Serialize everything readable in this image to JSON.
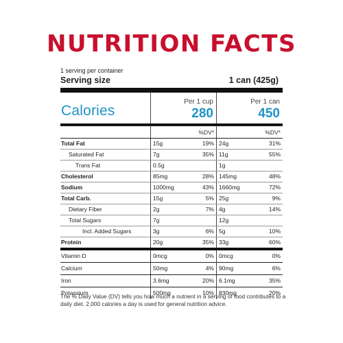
{
  "title": "NUTRITION FACTS",
  "colors": {
    "title": "#c8102e",
    "calories": "#1f93c5"
  },
  "serving": {
    "count": "1 serving per container",
    "size_label": "Serving size",
    "size_value": "1 can (425g)"
  },
  "columns": {
    "col1_header": "Per 1 cup",
    "col2_header": "Per 1 can",
    "dv_header": "%DV*"
  },
  "calories": {
    "label": "Calories",
    "col1": "280",
    "col2": "450"
  },
  "nutrients": [
    {
      "name": "Total Fat",
      "bold": true,
      "indent": 0,
      "col1_amt": "15g",
      "col1_dv": "19%",
      "col2_amt": "24g",
      "col2_dv": "31%"
    },
    {
      "name": "Saturated Fat",
      "bold": false,
      "indent": 1,
      "col1_amt": "7g",
      "col1_dv": "35%",
      "col2_amt": "11g",
      "col2_dv": "55%"
    },
    {
      "name": "Trans Fat",
      "bold": false,
      "indent": 2,
      "col1_amt": "0.5g",
      "col1_dv": "",
      "col2_amt": "1g",
      "col2_dv": ""
    },
    {
      "name": "Cholesterol",
      "bold": true,
      "indent": 0,
      "col1_amt": "85mg",
      "col1_dv": "28%",
      "col2_amt": "145mg",
      "col2_dv": "48%"
    },
    {
      "name": "Sodium",
      "bold": true,
      "indent": 0,
      "col1_amt": "1000mg",
      "col1_dv": "43%",
      "col2_amt": "1660mg",
      "col2_dv": "72%"
    },
    {
      "name": "Total Carb.",
      "bold": true,
      "indent": 0,
      "col1_amt": "15g",
      "col1_dv": "5%",
      "col2_amt": "25g",
      "col2_dv": "9%"
    },
    {
      "name": "Dietary Fiber",
      "bold": false,
      "indent": 1,
      "col1_amt": "2g",
      "col1_dv": "7%",
      "col2_amt": "4g",
      "col2_dv": "14%"
    },
    {
      "name": "Total Sugars",
      "bold": false,
      "indent": 1,
      "col1_amt": "7g",
      "col1_dv": "",
      "col2_amt": "12g",
      "col2_dv": ""
    },
    {
      "name": "Incl. Added Sugars",
      "bold": false,
      "indent": 3,
      "col1_amt": "3g",
      "col1_dv": "6%",
      "col2_amt": "5g",
      "col2_dv": "10%"
    },
    {
      "name": "Protein",
      "bold": true,
      "indent": 0,
      "col1_amt": "20g",
      "col1_dv": "35%",
      "col2_amt": "33g",
      "col2_dv": "60%"
    }
  ],
  "vitamins": [
    {
      "name": "Vitamin D",
      "col1_amt": "0mcg",
      "col1_dv": "0%",
      "col2_amt": "0mcg",
      "col2_dv": "0%"
    },
    {
      "name": "Calcium",
      "col1_amt": "50mg",
      "col1_dv": "4%",
      "col2_amt": "90mg",
      "col2_dv": "6%"
    },
    {
      "name": "Iron",
      "col1_amt": "3.6mg",
      "col1_dv": "20%",
      "col2_amt": "6.1mg",
      "col2_dv": "35%"
    },
    {
      "name": "Potassium",
      "col1_amt": "500mg",
      "col1_dv": "10%",
      "col2_amt": "830mg",
      "col2_dv": "20%"
    }
  ],
  "footnote": "The % Daily Value (DV) tells you how much a nutrient in a serving of food contributes to a daily diet. 2,000 calories a day is used for general nutrition advice."
}
